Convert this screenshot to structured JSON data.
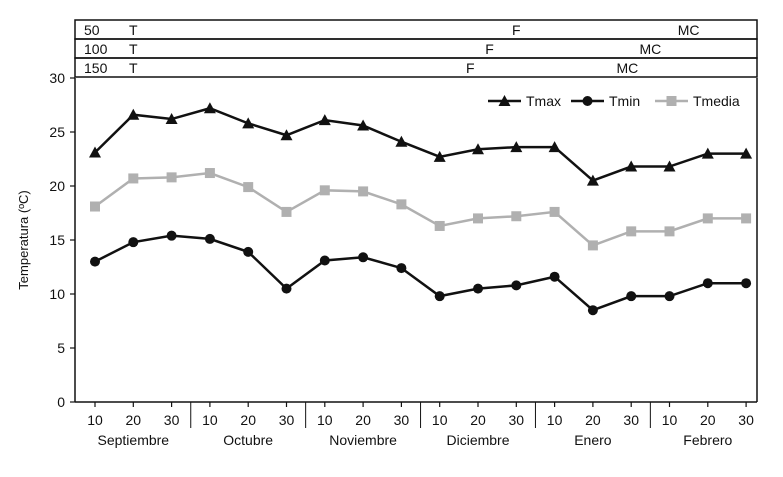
{
  "chart_data": {
    "type": "line",
    "ylabel": "Temperatura (ºC)",
    "ylim": [
      0,
      30
    ],
    "yticks": [
      0,
      5,
      10,
      15,
      20,
      25,
      30
    ],
    "x_tick_labels": [
      "10",
      "20",
      "30",
      "10",
      "20",
      "30",
      "10",
      "20",
      "30",
      "10",
      "20",
      "30",
      "10",
      "20",
      "30",
      "10",
      "20",
      "30"
    ],
    "months": [
      "Septiembre",
      "Octubre",
      "Noviembre",
      "Diciembre",
      "Enero",
      "Febrero"
    ],
    "legend_position": "top-right",
    "grid": false,
    "series": [
      {
        "name": "Tmax",
        "color": "#111111",
        "marker": "triangle",
        "values": [
          23.1,
          26.6,
          26.2,
          27.2,
          25.8,
          24.7,
          26.1,
          25.6,
          24.1,
          22.7,
          23.4,
          23.6,
          23.6,
          20.5,
          21.8,
          21.8,
          23.0,
          23.0
        ]
      },
      {
        "name": "Tmin",
        "color": "#111111",
        "marker": "circle",
        "values": [
          13.0,
          14.8,
          15.4,
          15.1,
          13.9,
          10.5,
          13.1,
          13.4,
          12.4,
          9.8,
          10.5,
          10.8,
          11.6,
          8.5,
          9.8,
          9.8,
          11.0,
          11.0
        ]
      },
      {
        "name": "Tmedia",
        "color": "#b0b0b0",
        "marker": "square",
        "values": [
          18.1,
          20.7,
          20.8,
          21.2,
          19.9,
          17.6,
          19.6,
          19.5,
          18.3,
          16.3,
          17.0,
          17.2,
          17.6,
          14.5,
          15.8,
          15.8,
          17.0,
          17.0
        ]
      }
    ],
    "phenology_bands": [
      {
        "label": "50",
        "marks": [
          {
            "text": "T",
            "index": 1.0
          },
          {
            "text": "F",
            "index": 11.0
          },
          {
            "text": "MC",
            "index": 15.5
          }
        ]
      },
      {
        "label": "100",
        "marks": [
          {
            "text": "T",
            "index": 1.0
          },
          {
            "text": "F",
            "index": 10.3
          },
          {
            "text": "MC",
            "index": 14.5
          }
        ]
      },
      {
        "label": "150",
        "marks": [
          {
            "text": "T",
            "index": 1.0
          },
          {
            "text": "F",
            "index": 9.8
          },
          {
            "text": "MC",
            "index": 13.9
          }
        ]
      }
    ]
  }
}
